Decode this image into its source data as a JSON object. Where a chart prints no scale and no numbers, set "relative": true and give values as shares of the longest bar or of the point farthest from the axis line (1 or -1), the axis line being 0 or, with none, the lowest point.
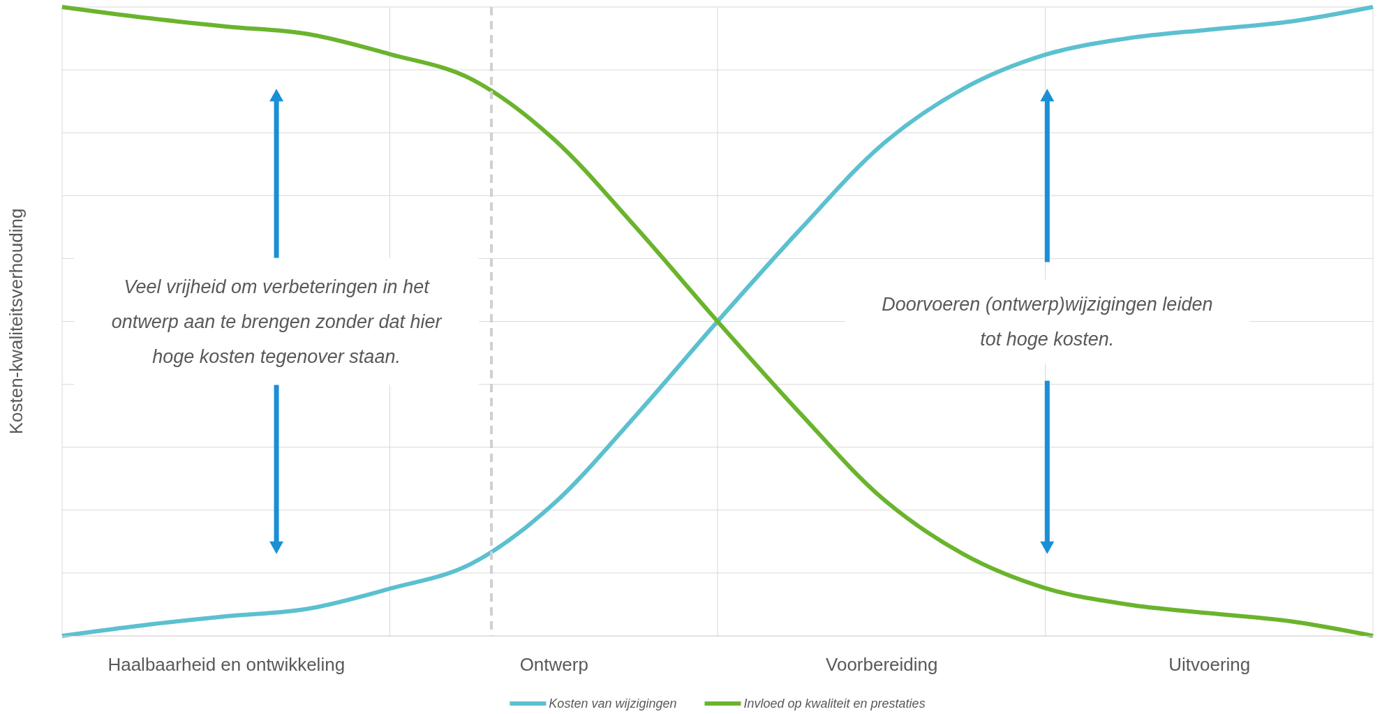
{
  "chart_data": {
    "type": "line",
    "relative": true,
    "ylabel": "Kosten-kwaliteitsverhouding",
    "categories": [
      null,
      null,
      "Haalbaarheid en ontwikkeling",
      null,
      null,
      null,
      "Ontwerp",
      null,
      null,
      null,
      "Voorbereiding",
      null,
      null,
      null,
      "Uitvoering",
      null,
      null
    ],
    "series": [
      {
        "name": "Kosten van wijzigingen",
        "color": "#5bc0cf",
        "values": [
          0,
          0.017,
          0.031,
          0.043,
          0.075,
          0.115,
          0.21,
          0.35,
          0.5,
          0.645,
          0.78,
          0.87,
          0.924,
          0.95,
          0.964,
          0.977,
          1
        ]
      },
      {
        "name": "Invloed op kwaliteit en prestaties",
        "color": "#6ab42d",
        "values": [
          1,
          0.983,
          0.969,
          0.957,
          0.925,
          0.885,
          0.79,
          0.65,
          0.5,
          0.355,
          0.22,
          0.13,
          0.076,
          0.05,
          0.036,
          0.023,
          0
        ]
      }
    ],
    "annotations": [
      "Veel vrijheid om verbeteringen in het\nontwerp aan te brengen zonder dat hier\nhoge kosten tegenover staan.",
      "Doorvoeren (ontwerp)wijzigingen leiden\ntot hoge kosten."
    ],
    "grid": true,
    "legend": "bottom",
    "line_style": "solid",
    "marker": "none"
  }
}
